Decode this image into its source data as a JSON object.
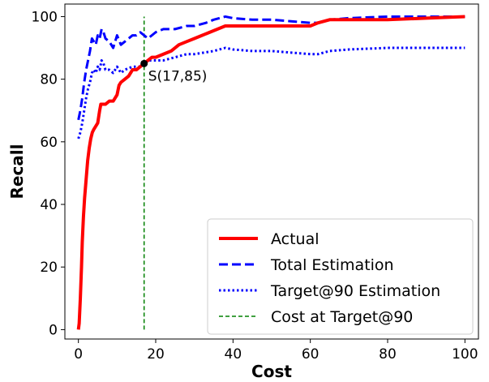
{
  "chart_data": {
    "type": "line",
    "xlabel": "Cost",
    "ylabel": "Recall",
    "xlim": [
      -3.5,
      103.5
    ],
    "ylim": [
      -3,
      104
    ],
    "xticks": [
      0,
      20,
      40,
      60,
      80,
      100
    ],
    "yticks": [
      0,
      20,
      40,
      60,
      80,
      100
    ],
    "grid": false,
    "legend_position": "lower-right",
    "series": [
      {
        "name": "Actual",
        "style": "solid",
        "color": "#ff0000",
        "x": [
          0,
          0.2,
          0.5,
          0.8,
          1.0,
          1.3,
          1.6,
          2.0,
          2.4,
          2.8,
          3.2,
          3.6,
          4.0,
          4.5,
          5.0,
          5.5,
          5.8,
          6.2,
          7.0,
          8.0,
          9.0,
          10.0,
          10.5,
          11.0,
          12.0,
          13.0,
          14.0,
          15.0,
          16.0,
          17.0,
          18.0,
          19.0,
          20.0,
          22.0,
          24.0,
          26.0,
          28.0,
          30.0,
          32.0,
          34.0,
          36.0,
          38.0,
          40.0,
          45.0,
          50.0,
          55.0,
          60.0,
          62.0,
          65.0,
          70.0,
          80.0,
          90.0,
          100.0
        ],
        "y": [
          0,
          2,
          10,
          20,
          28,
          36,
          42,
          48,
          54,
          58,
          61,
          63,
          64,
          65,
          66,
          70,
          72,
          72,
          72,
          73,
          73,
          75,
          78,
          79,
          80,
          81,
          83,
          83,
          84,
          85,
          86,
          87,
          87,
          88,
          89,
          91,
          92,
          93,
          94,
          95,
          96,
          97,
          97,
          97,
          97,
          97,
          97,
          98,
          99,
          99,
          99,
          99.5,
          100
        ]
      },
      {
        "name": "Total Estimation",
        "style": "dashed",
        "color": "#0000ff",
        "x": [
          0,
          0.5,
          1.0,
          1.5,
          2.0,
          2.5,
          3.0,
          3.5,
          4.0,
          4.5,
          5.0,
          5.5,
          6.0,
          6.5,
          7.0,
          8.0,
          9.0,
          10.0,
          11.0,
          12.0,
          13.0,
          14.0,
          15.0,
          16.0,
          17.0,
          18.0,
          20.0,
          22.0,
          25.0,
          28.0,
          30.0,
          33.0,
          35.0,
          38.0,
          40.0,
          45.0,
          50.0,
          55.0,
          60.0,
          62.0,
          65.0,
          70.0,
          80.0,
          90.0,
          100.0
        ],
        "y": [
          67,
          70,
          74,
          79,
          83,
          86,
          89,
          93,
          92,
          91,
          94,
          93,
          96,
          95,
          93,
          92,
          90,
          94,
          91,
          92,
          93,
          94,
          94,
          95,
          94,
          93,
          95,
          96,
          96,
          97,
          97,
          98,
          99,
          100,
          99.5,
          99,
          99,
          98.5,
          98,
          98,
          99,
          99.5,
          100,
          100,
          100
        ]
      },
      {
        "name": "Target@90 Estimation",
        "style": "dotted",
        "color": "#0000ff",
        "x": [
          0,
          0.5,
          1.0,
          1.5,
          2.0,
          2.5,
          3.0,
          3.5,
          4.0,
          4.5,
          5.0,
          5.5,
          6.0,
          6.5,
          7.0,
          8.0,
          9.0,
          10.0,
          11.0,
          12.0,
          14.0,
          16.0,
          17.0,
          18.0,
          20.0,
          22.0,
          25.0,
          28.0,
          30.0,
          35.0,
          38.0,
          40.0,
          45.0,
          50.0,
          55.0,
          60.0,
          62.0,
          65.0,
          70.0,
          80.0,
          90.0,
          100.0
        ],
        "y": [
          61,
          63,
          66,
          70,
          74,
          77,
          79,
          82,
          83,
          82,
          84,
          83,
          86,
          85,
          83,
          83,
          82,
          84,
          82,
          83,
          84,
          84,
          85,
          86,
          86,
          86,
          87,
          88,
          88,
          89,
          90,
          89.5,
          89,
          89,
          88.5,
          88,
          88,
          89,
          89.5,
          90,
          90,
          90
        ]
      },
      {
        "name": "Cost at Target@90",
        "style": "dashed-thin",
        "color": "#008000",
        "x": [
          17,
          17
        ],
        "y": [
          0,
          100
        ]
      }
    ],
    "annotations": [
      {
        "text": "S(17,85)",
        "x": 17,
        "y": 85
      }
    ]
  }
}
